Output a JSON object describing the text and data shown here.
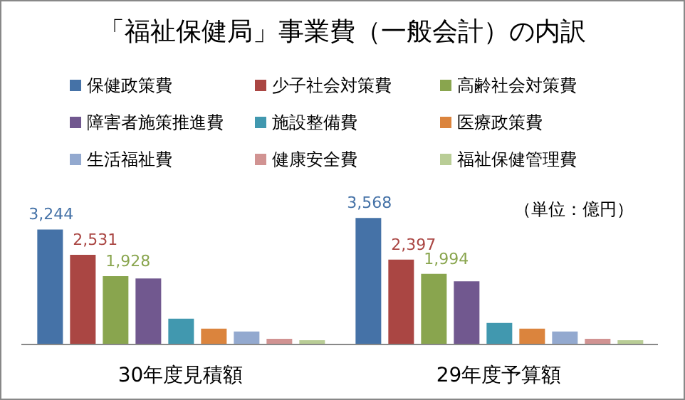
{
  "chart_data": {
    "type": "bar",
    "title": "「福祉保健局」事業費（一般会計）の内訳",
    "categories": [
      "30年度見積額",
      "29年度予算額"
    ],
    "series": [
      {
        "name": "保健政策費",
        "color": "#4572a7",
        "values": [
          3244,
          3568
        ],
        "value_labels": [
          "3,244",
          "3,568"
        ]
      },
      {
        "name": "少子社会対策費",
        "color": "#aa4643",
        "values": [
          2531,
          2397
        ],
        "value_labels": [
          "2,531",
          "2,397"
        ]
      },
      {
        "name": "高齢社会対策費",
        "color": "#89a54e",
        "values": [
          1928,
          1994
        ],
        "value_labels": [
          "1,928",
          "1,994"
        ]
      },
      {
        "name": "障害者施策推進費",
        "color": "#71588f",
        "values": [
          1865,
          1784
        ]
      },
      {
        "name": "施設整備費",
        "color": "#4198af",
        "values": [
          730,
          608
        ]
      },
      {
        "name": "医療政策費",
        "color": "#db843d",
        "values": [
          446,
          446
        ]
      },
      {
        "name": "生活福祉費",
        "color": "#93a9cf",
        "values": [
          365,
          365
        ]
      },
      {
        "name": "健康安全費",
        "color": "#d19392",
        "values": [
          162,
          162
        ]
      },
      {
        "name": "福祉保健管理費",
        "color": "#b9cd96",
        "values": [
          122,
          122
        ]
      }
    ],
    "legend": "top",
    "annotations": [
      "（単位：億円）"
    ]
  }
}
